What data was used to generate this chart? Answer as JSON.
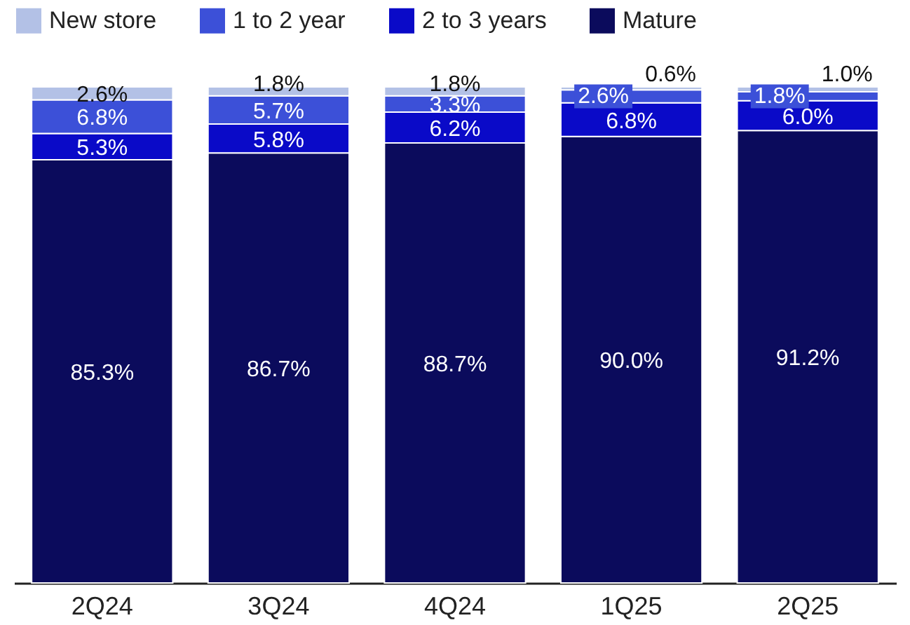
{
  "chart_data": {
    "type": "bar",
    "stacked": true,
    "categories": [
      "2Q24",
      "3Q24",
      "4Q24",
      "1Q25",
      "2Q25"
    ],
    "series": [
      {
        "name": "Mature",
        "color": "#0b0b5c",
        "values": [
          85.3,
          86.7,
          88.7,
          90.0,
          91.2
        ],
        "value_labels": [
          "85.3%",
          "86.7%",
          "88.7%",
          "90.0%",
          "91.2%"
        ]
      },
      {
        "name": "2 to 3 years",
        "color": "#0a0ac8",
        "values": [
          5.3,
          5.8,
          6.2,
          6.8,
          6.0
        ],
        "value_labels": [
          "5.3%",
          "5.8%",
          "6.2%",
          "6.8%",
          "6.0%"
        ]
      },
      {
        "name": "1 to 2 year",
        "color": "#3c50d8",
        "values": [
          6.8,
          5.7,
          3.3,
          2.6,
          1.8
        ],
        "value_labels": [
          "6.8%",
          "5.7%",
          "3.3%",
          "2.6%",
          "1.8%"
        ]
      },
      {
        "name": "New store",
        "color": "#b3c1e6",
        "values": [
          2.6,
          1.8,
          1.8,
          0.6,
          1.0
        ],
        "value_labels": [
          "2.6%",
          "1.8%",
          "1.8%",
          "0.6%",
          "1.0%"
        ]
      }
    ],
    "ylim": [
      0,
      100
    ],
    "legend": "top"
  }
}
